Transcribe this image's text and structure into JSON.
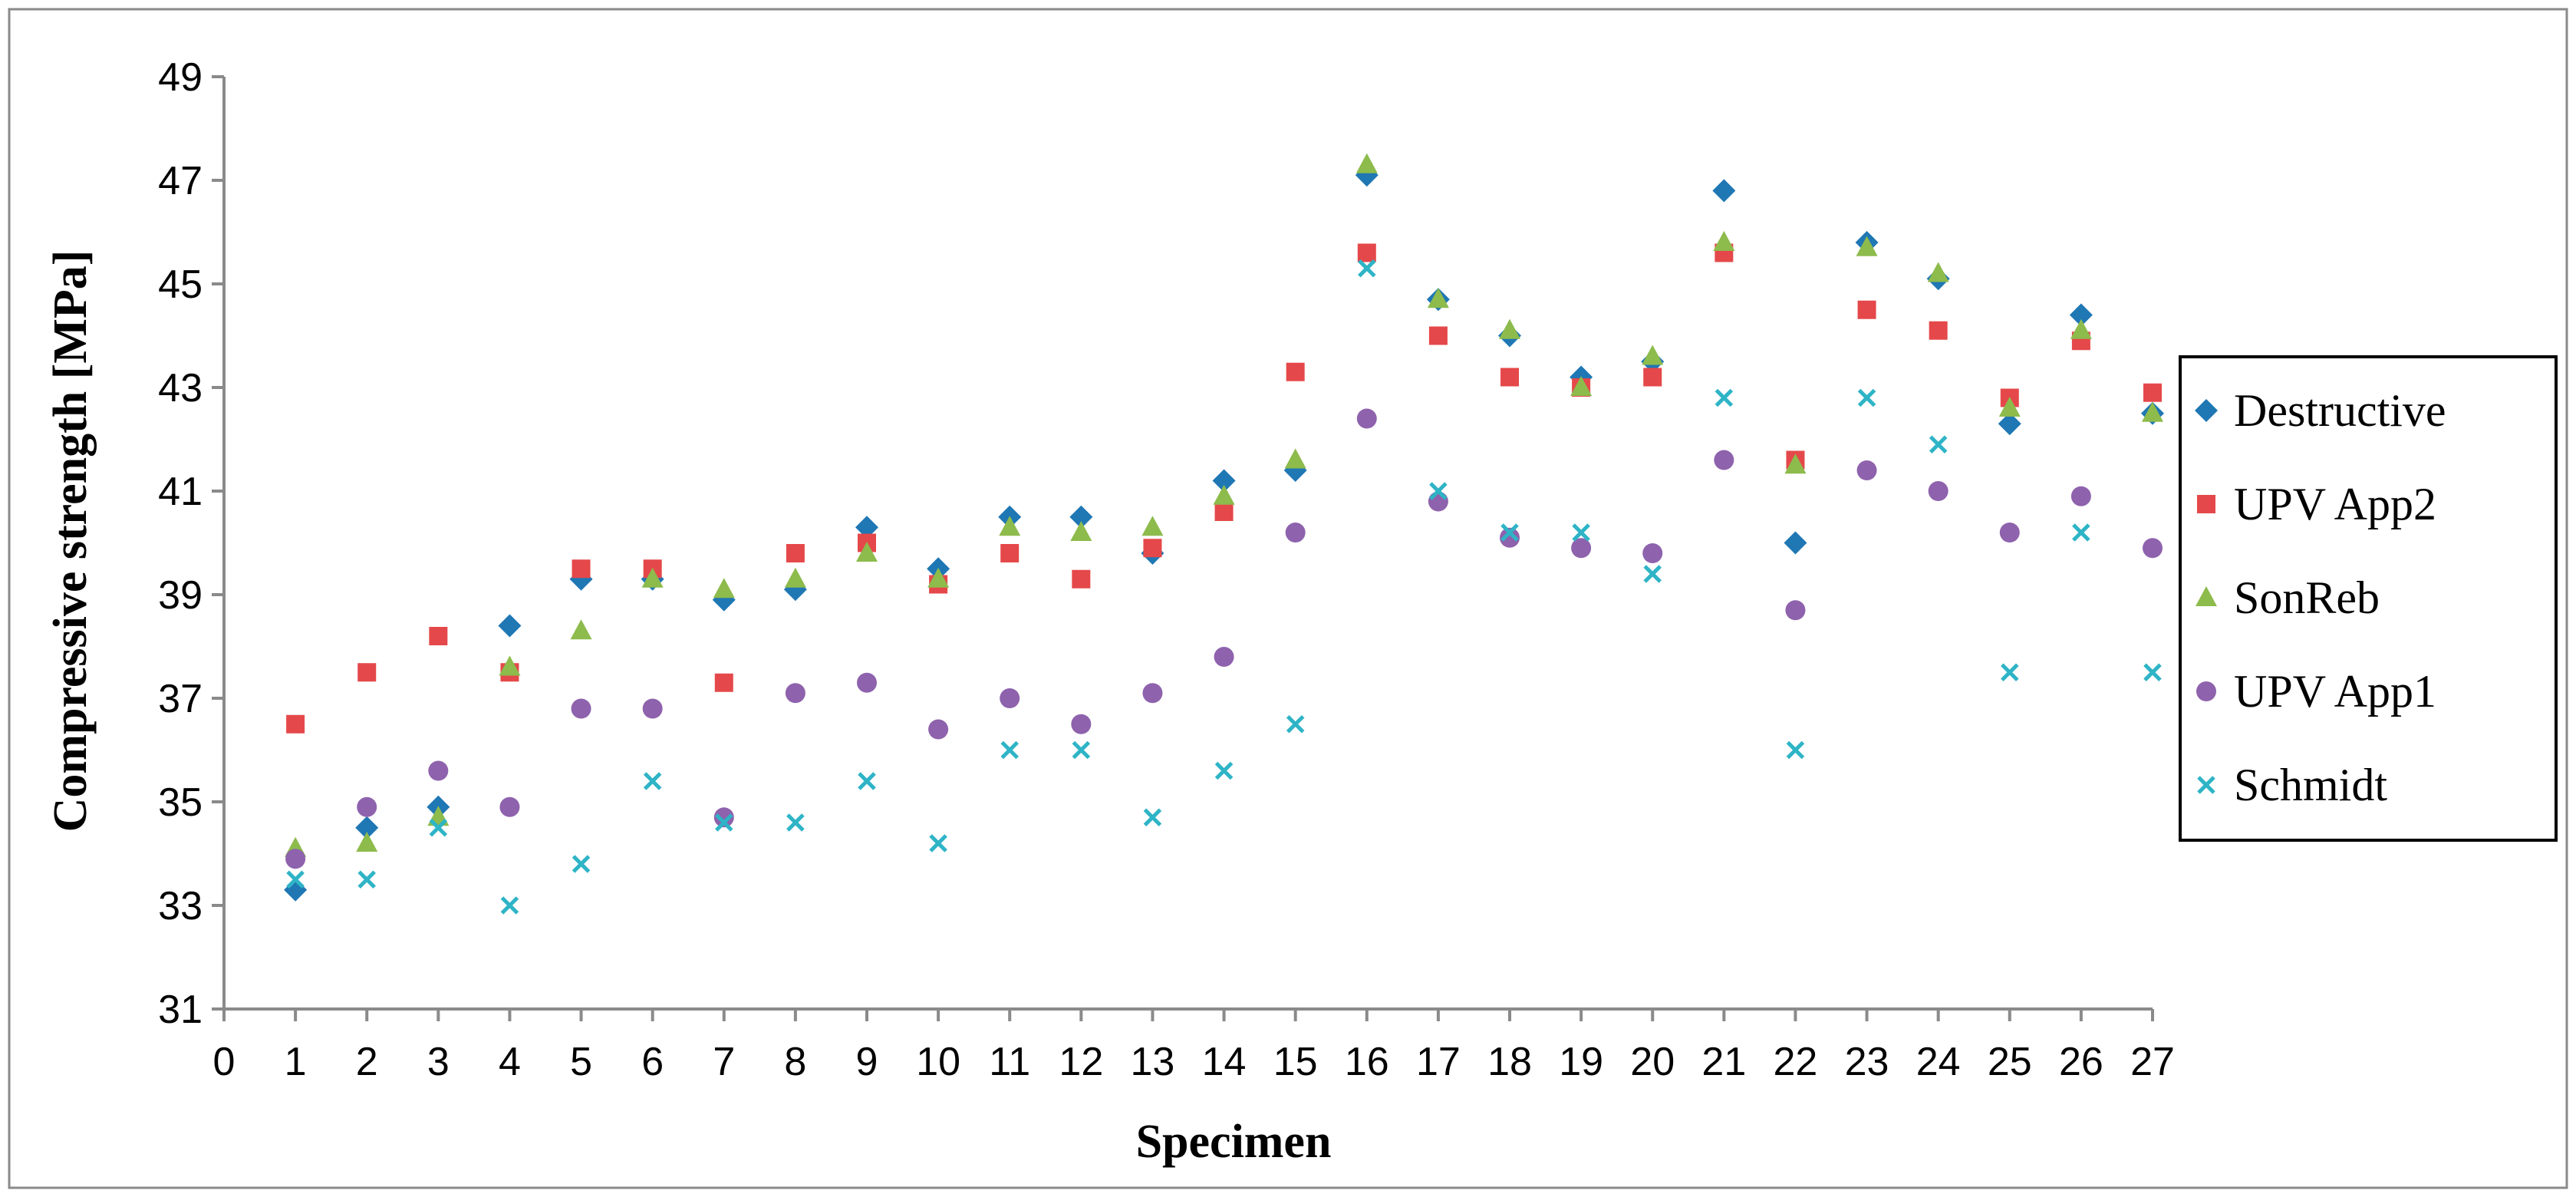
{
  "chart_data": {
    "type": "scatter",
    "title": "",
    "xlabel": "Specimen",
    "ylabel": "Compressive strength [MPa]",
    "xlim": [
      0,
      27
    ],
    "ylim": [
      31,
      49
    ],
    "x_ticks": [
      "0",
      "1",
      "2",
      "3",
      "4",
      "5",
      "6",
      "7",
      "8",
      "9",
      "10",
      "11",
      "12",
      "13",
      "14",
      "15",
      "16",
      "17",
      "18",
      "19",
      "20",
      "21",
      "22",
      "23",
      "24",
      "25",
      "26",
      "27"
    ],
    "y_ticks": [
      "31",
      "33",
      "35",
      "37",
      "39",
      "41",
      "43",
      "45",
      "47",
      "49"
    ],
    "grid": false,
    "legend_position": "right",
    "x": [
      1,
      2,
      3,
      4,
      5,
      6,
      7,
      8,
      9,
      10,
      11,
      12,
      13,
      14,
      15,
      16,
      17,
      18,
      19,
      20,
      21,
      22,
      23,
      24,
      25,
      26,
      27
    ],
    "series": [
      {
        "name": "Destructive",
        "marker": "diamond",
        "color": "#1F77B4",
        "values": [
          33.3,
          34.5,
          34.9,
          38.4,
          39.3,
          39.3,
          38.9,
          39.1,
          40.3,
          39.5,
          40.5,
          40.5,
          39.8,
          41.2,
          41.4,
          47.1,
          44.7,
          44.0,
          43.2,
          43.5,
          46.8,
          40.0,
          45.8,
          45.1,
          42.3,
          44.4,
          42.5
        ]
      },
      {
        "name": "UPV App2",
        "marker": "square",
        "color": "#E5484A",
        "values": [
          36.5,
          37.5,
          38.2,
          37.5,
          39.5,
          39.5,
          37.3,
          39.8,
          40.0,
          39.2,
          39.8,
          39.3,
          39.9,
          40.6,
          43.3,
          45.6,
          44.0,
          43.2,
          43.0,
          43.2,
          45.6,
          41.6,
          44.5,
          44.1,
          42.8,
          43.9,
          42.9
        ]
      },
      {
        "name": "SonReb",
        "marker": "triangle",
        "color": "#8DBB4C",
        "values": [
          34.1,
          34.2,
          34.7,
          37.6,
          38.3,
          39.3,
          39.1,
          39.3,
          39.8,
          39.3,
          40.3,
          40.2,
          40.3,
          40.9,
          41.6,
          47.3,
          44.7,
          44.1,
          43.0,
          43.6,
          45.8,
          41.5,
          45.7,
          45.2,
          42.6,
          44.1,
          42.5
        ]
      },
      {
        "name": "UPV App1",
        "marker": "circle",
        "color": "#8E62AD",
        "values": [
          33.9,
          34.9,
          35.6,
          34.9,
          36.8,
          36.8,
          34.7,
          37.1,
          37.3,
          36.4,
          37.0,
          36.5,
          37.1,
          37.8,
          40.2,
          42.4,
          40.8,
          40.1,
          39.9,
          39.8,
          41.6,
          38.7,
          41.4,
          41.0,
          40.2,
          40.9,
          39.9
        ]
      },
      {
        "name": "Schmidt",
        "marker": "x",
        "color": "#2EB4C6",
        "values": [
          33.5,
          33.5,
          34.5,
          33.0,
          33.8,
          35.4,
          34.6,
          34.6,
          35.4,
          34.2,
          36.0,
          36.0,
          34.7,
          35.6,
          36.5,
          45.3,
          41.0,
          40.2,
          40.2,
          39.4,
          42.8,
          36.0,
          42.8,
          41.9,
          37.5,
          40.2,
          37.5
        ]
      }
    ]
  }
}
